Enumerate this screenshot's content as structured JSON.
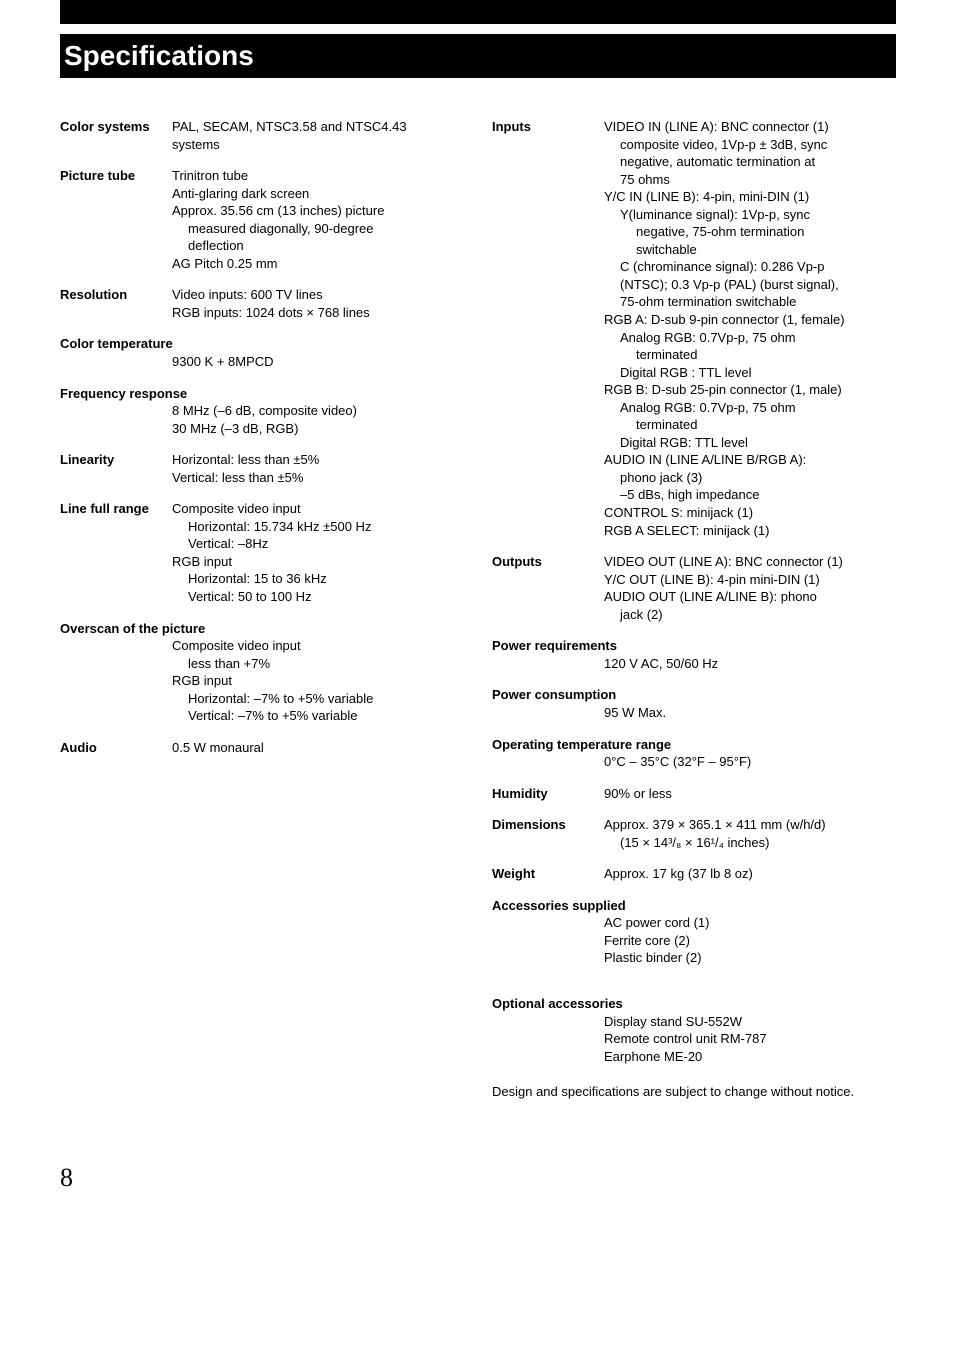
{
  "title": "Specifications",
  "page_number": "8",
  "left_column": [
    {
      "label": "Color systems",
      "lines": [
        {
          "t": "PAL, SECAM, NTSC3.58 and NTSC4.43"
        },
        {
          "t": "systems"
        }
      ]
    },
    {
      "label": "Picture tube",
      "lines": [
        {
          "t": "Trinitron tube"
        },
        {
          "t": "Anti-glaring dark screen"
        },
        {
          "t": "Approx. 35.56 cm (13 inches) picture"
        },
        {
          "t": "measured diagonally, 90-degree",
          "indent": 1
        },
        {
          "t": "deflection",
          "indent": 1
        },
        {
          "t": "AG Pitch 0.25 mm"
        }
      ]
    },
    {
      "label": "Resolution",
      "lines": [
        {
          "t": "Video inputs: 600 TV lines"
        },
        {
          "t": "RGB inputs: 1024 dots × 768 lines"
        }
      ]
    },
    {
      "label": "Color temperature",
      "full_width_label": true,
      "lines": [
        {
          "t": "9300 K + 8MPCD"
        }
      ]
    },
    {
      "label": "Frequency response",
      "full_width_label": true,
      "lines": [
        {
          "t": "8 MHz (–6 dB, composite video)"
        },
        {
          "t": "30 MHz (–3 dB, RGB)"
        }
      ]
    },
    {
      "label": "Linearity",
      "lines": [
        {
          "t": "Horizontal: less than ±5%"
        },
        {
          "t": "Vertical: less than ±5%"
        }
      ]
    },
    {
      "label": "Line full range",
      "lines": [
        {
          "t": "Composite video input"
        },
        {
          "t": "Horizontal: 15.734 kHz ±500 Hz",
          "indent": 1
        },
        {
          "t": "Vertical: –8Hz",
          "indent": 1
        },
        {
          "t": "RGB input"
        },
        {
          "t": "Horizontal: 15 to 36 kHz",
          "indent": 1
        },
        {
          "t": "Vertical: 50 to 100 Hz",
          "indent": 1
        }
      ]
    },
    {
      "label": "Overscan of the picture",
      "full_width_label": true,
      "lines": [
        {
          "t": "Composite video input"
        },
        {
          "t": "less than +7%",
          "indent": 1
        },
        {
          "t": "RGB input"
        },
        {
          "t": "Horizontal: –7% to +5% variable",
          "indent": 1
        },
        {
          "t": "Vertical: –7% to +5% variable",
          "indent": 1
        }
      ]
    },
    {
      "label": "Audio",
      "lines": [
        {
          "t": "0.5 W monaural"
        }
      ]
    }
  ],
  "right_column": [
    {
      "label": "Inputs",
      "lines": [
        {
          "t": "VIDEO IN (LINE A): BNC connector (1)"
        },
        {
          "t": "composite video, 1Vp-p ± 3dB, sync",
          "indent": 1
        },
        {
          "t": "negative, automatic termination at",
          "indent": 1
        },
        {
          "t": "75 ohms",
          "indent": 1
        },
        {
          "t": "Y/C IN (LINE B): 4-pin, mini-DIN (1)"
        },
        {
          "t": "Y(luminance signal): 1Vp-p, sync",
          "indent": 1
        },
        {
          "t": "negative, 75-ohm termination",
          "indent": 2
        },
        {
          "t": "switchable",
          "indent": 2
        },
        {
          "t": "C (chrominance signal): 0.286 Vp-p",
          "indent": 1
        },
        {
          "t": "(NTSC); 0.3 Vp-p (PAL) (burst signal),",
          "indent": 1
        },
        {
          "t": "75-ohm termination switchable",
          "indent": 1
        },
        {
          "t": "RGB A: D-sub 9-pin connector (1, female)"
        },
        {
          "t": "Analog RGB: 0.7Vp-p, 75 ohm",
          "indent": 1
        },
        {
          "t": "terminated",
          "indent": 2
        },
        {
          "t": "Digital RGB : TTL level",
          "indent": 1
        },
        {
          "t": "RGB B: D-sub 25-pin connector (1, male)"
        },
        {
          "t": "Analog RGB: 0.7Vp-p, 75 ohm",
          "indent": 1
        },
        {
          "t": "terminated",
          "indent": 2
        },
        {
          "t": "Digital RGB: TTL level",
          "indent": 1
        },
        {
          "t": "AUDIO IN (LINE A/LINE B/RGB A):"
        },
        {
          "t": "phono jack (3)",
          "indent": 1
        },
        {
          "t": "–5 dBs, high impedance",
          "indent": 1
        },
        {
          "t": "CONTROL S: minijack (1)"
        },
        {
          "t": "RGB A SELECT: minijack (1)"
        }
      ]
    },
    {
      "label": "Outputs",
      "lines": [
        {
          "t": "VIDEO OUT (LINE A): BNC connector (1)"
        },
        {
          "t": "Y/C OUT (LINE B): 4-pin mini-DIN (1)"
        },
        {
          "t": "AUDIO OUT (LINE A/LINE B): phono"
        },
        {
          "t": "jack (2)",
          "indent": 1
        }
      ]
    },
    {
      "label": "Power requirements",
      "full_width_label": true,
      "lines": [
        {
          "t": "120 V AC, 50/60 Hz"
        }
      ]
    },
    {
      "label": "Power consumption",
      "full_width_label": true,
      "lines": [
        {
          "t": "95 W Max."
        }
      ]
    },
    {
      "label": "Operating temperature range",
      "full_width_label": true,
      "lines": [
        {
          "t": "0°C – 35°C (32°F – 95°F)"
        }
      ]
    },
    {
      "label": "Humidity",
      "lines": [
        {
          "t": "90% or less"
        }
      ]
    },
    {
      "label": "Dimensions",
      "lines": [
        {
          "t": "Approx. 379 × 365.1 × 411 mm (w/h/d)"
        },
        {
          "t": "(15 × 14³/₈ × 16¹/₄ inches)",
          "indent": 1
        }
      ]
    },
    {
      "label": "Weight",
      "lines": [
        {
          "t": "Approx. 17 kg (37 lb 8 oz)"
        }
      ]
    },
    {
      "label": "Accessories supplied",
      "full_width_label": true,
      "lines": [
        {
          "t": "AC power cord (1)"
        },
        {
          "t": "Ferrite core (2)"
        },
        {
          "t": "Plastic binder (2)"
        }
      ]
    },
    {
      "label": "Optional accessories",
      "full_width_label": true,
      "top_gap": true,
      "lines": [
        {
          "t": "Display stand SU-552W"
        },
        {
          "t": "Remote control unit RM-787"
        },
        {
          "t": "Earphone ME-20"
        }
      ]
    }
  ],
  "footer_note": "Design and specifications are subject to change without notice."
}
